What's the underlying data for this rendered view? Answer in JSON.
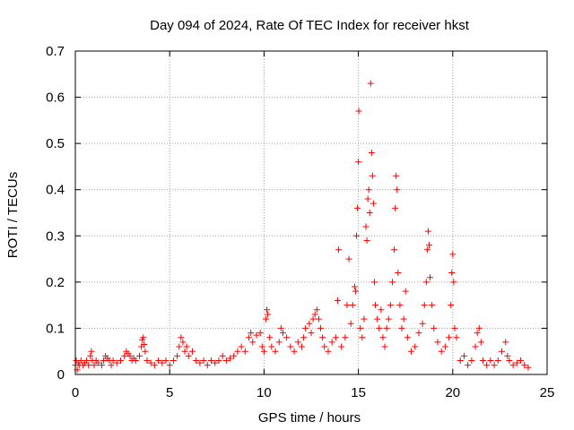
{
  "chart_data": {
    "type": "scatter",
    "title": "Day 094 of 2024, Rate Of TEC Index for receiver hkst",
    "xlabel": "GPS time / hours",
    "ylabel": "ROTI / TECUs",
    "xlim": [
      0,
      25
    ],
    "ylim": [
      0,
      0.7
    ],
    "xticks": [
      "0",
      "5",
      "10",
      "15",
      "20",
      "25"
    ],
    "xtick_values": [
      0,
      5,
      10,
      15,
      20,
      25
    ],
    "yticks": [
      "0",
      "0.1",
      "0.2",
      "0.3",
      "0.4",
      "0.5",
      "0.6",
      "0.7"
    ],
    "ytick_values": [
      0,
      0.1,
      0.2,
      0.3,
      0.4,
      0.5,
      0.6,
      0.7
    ],
    "grid": true,
    "marker": "+",
    "color": "#ff0000",
    "series": [
      {
        "name": "ROTI",
        "points": [
          [
            0.0,
            0.02
          ],
          [
            0.05,
            0.03
          ],
          [
            0.1,
            0.01
          ],
          [
            0.15,
            0.025
          ],
          [
            0.2,
            0.02
          ],
          [
            0.3,
            0.03
          ],
          [
            0.4,
            0.02
          ],
          [
            0.5,
            0.025
          ],
          [
            0.6,
            0.03
          ],
          [
            0.7,
            0.02
          ],
          [
            0.8,
            0.04
          ],
          [
            0.85,
            0.05
          ],
          [
            0.9,
            0.03
          ],
          [
            1.0,
            0.02
          ],
          [
            1.1,
            0.03
          ],
          [
            1.2,
            0.025
          ],
          [
            1.4,
            0.02
          ],
          [
            1.5,
            0.03
          ],
          [
            1.6,
            0.04
          ],
          [
            1.7,
            0.035
          ],
          [
            1.8,
            0.03
          ],
          [
            1.9,
            0.02
          ],
          [
            2.0,
            0.03
          ],
          [
            2.2,
            0.025
          ],
          [
            2.4,
            0.03
          ],
          [
            2.6,
            0.04
          ],
          [
            2.7,
            0.05
          ],
          [
            2.8,
            0.045
          ],
          [
            2.9,
            0.04
          ],
          [
            3.0,
            0.03
          ],
          [
            3.1,
            0.035
          ],
          [
            3.2,
            0.03
          ],
          [
            3.4,
            0.04
          ],
          [
            3.5,
            0.06
          ],
          [
            3.55,
            0.075
          ],
          [
            3.6,
            0.08
          ],
          [
            3.65,
            0.065
          ],
          [
            3.7,
            0.05
          ],
          [
            3.8,
            0.03
          ],
          [
            4.0,
            0.025
          ],
          [
            4.2,
            0.02
          ],
          [
            4.4,
            0.03
          ],
          [
            4.6,
            0.025
          ],
          [
            4.8,
            0.03
          ],
          [
            5.0,
            0.02
          ],
          [
            5.2,
            0.03
          ],
          [
            5.4,
            0.04
          ],
          [
            5.5,
            0.06
          ],
          [
            5.6,
            0.08
          ],
          [
            5.7,
            0.07
          ],
          [
            5.8,
            0.05
          ],
          [
            5.9,
            0.06
          ],
          [
            6.0,
            0.04
          ],
          [
            6.2,
            0.05
          ],
          [
            6.4,
            0.03
          ],
          [
            6.6,
            0.025
          ],
          [
            6.8,
            0.03
          ],
          [
            7.0,
            0.02
          ],
          [
            7.2,
            0.03
          ],
          [
            7.4,
            0.025
          ],
          [
            7.6,
            0.03
          ],
          [
            7.8,
            0.04
          ],
          [
            8.0,
            0.03
          ],
          [
            8.2,
            0.035
          ],
          [
            8.4,
            0.04
          ],
          [
            8.6,
            0.05
          ],
          [
            8.8,
            0.06
          ],
          [
            9.0,
            0.05
          ],
          [
            9.2,
            0.08
          ],
          [
            9.3,
            0.09
          ],
          [
            9.4,
            0.07
          ],
          [
            9.6,
            0.085
          ],
          [
            9.8,
            0.09
          ],
          [
            9.9,
            0.06
          ],
          [
            10.0,
            0.05
          ],
          [
            10.1,
            0.12
          ],
          [
            10.15,
            0.14
          ],
          [
            10.2,
            0.13
          ],
          [
            10.3,
            0.08
          ],
          [
            10.4,
            0.06
          ],
          [
            10.6,
            0.05
          ],
          [
            10.8,
            0.07
          ],
          [
            10.9,
            0.1
          ],
          [
            11.0,
            0.09
          ],
          [
            11.2,
            0.08
          ],
          [
            11.4,
            0.06
          ],
          [
            11.6,
            0.05
          ],
          [
            11.8,
            0.07
          ],
          [
            12.0,
            0.06
          ],
          [
            12.1,
            0.08
          ],
          [
            12.2,
            0.1
          ],
          [
            12.4,
            0.11
          ],
          [
            12.5,
            0.09
          ],
          [
            12.6,
            0.12
          ],
          [
            12.7,
            0.13
          ],
          [
            12.8,
            0.14
          ],
          [
            12.9,
            0.12
          ],
          [
            13.0,
            0.1
          ],
          [
            13.1,
            0.08
          ],
          [
            13.2,
            0.06
          ],
          [
            13.4,
            0.05
          ],
          [
            13.6,
            0.07
          ],
          [
            13.8,
            0.08
          ],
          [
            13.9,
            0.16
          ],
          [
            13.95,
            0.27
          ],
          [
            14.1,
            0.06
          ],
          [
            14.3,
            0.08
          ],
          [
            14.4,
            0.15
          ],
          [
            14.5,
            0.25
          ],
          [
            14.6,
            0.11
          ],
          [
            14.7,
            0.15
          ],
          [
            14.8,
            0.19
          ],
          [
            14.85,
            0.18
          ],
          [
            14.9,
            0.3
          ],
          [
            14.95,
            0.36
          ],
          [
            15.0,
            0.46
          ],
          [
            15.02,
            0.57
          ],
          [
            15.1,
            0.1
          ],
          [
            15.2,
            0.08
          ],
          [
            15.3,
            0.12
          ],
          [
            15.4,
            0.32
          ],
          [
            15.45,
            0.29
          ],
          [
            15.5,
            0.38
          ],
          [
            15.55,
            0.4
          ],
          [
            15.6,
            0.35
          ],
          [
            15.65,
            0.63
          ],
          [
            15.7,
            0.48
          ],
          [
            15.75,
            0.43
          ],
          [
            15.8,
            0.37
          ],
          [
            15.85,
            0.2
          ],
          [
            15.9,
            0.15
          ],
          [
            16.0,
            0.12
          ],
          [
            16.1,
            0.1
          ],
          [
            16.2,
            0.14
          ],
          [
            16.3,
            0.08
          ],
          [
            16.4,
            0.06
          ],
          [
            16.5,
            0.1
          ],
          [
            16.6,
            0.12
          ],
          [
            16.7,
            0.15
          ],
          [
            16.8,
            0.2
          ],
          [
            16.9,
            0.27
          ],
          [
            16.95,
            0.36
          ],
          [
            17.0,
            0.43
          ],
          [
            17.05,
            0.4
          ],
          [
            17.1,
            0.22
          ],
          [
            17.2,
            0.15
          ],
          [
            17.3,
            0.1
          ],
          [
            17.4,
            0.12
          ],
          [
            17.5,
            0.18
          ],
          [
            17.6,
            0.08
          ],
          [
            17.8,
            0.05
          ],
          [
            18.0,
            0.06
          ],
          [
            18.2,
            0.09
          ],
          [
            18.4,
            0.11
          ],
          [
            18.5,
            0.15
          ],
          [
            18.6,
            0.2
          ],
          [
            18.65,
            0.27
          ],
          [
            18.7,
            0.31
          ],
          [
            18.75,
            0.28
          ],
          [
            18.8,
            0.21
          ],
          [
            18.9,
            0.15
          ],
          [
            19.0,
            0.1
          ],
          [
            19.2,
            0.07
          ],
          [
            19.4,
            0.05
          ],
          [
            19.6,
            0.06
          ],
          [
            19.8,
            0.08
          ],
          [
            19.9,
            0.15
          ],
          [
            19.95,
            0.22
          ],
          [
            20.0,
            0.26
          ],
          [
            20.05,
            0.2
          ],
          [
            20.1,
            0.1
          ],
          [
            20.2,
            0.08
          ],
          [
            20.4,
            0.03
          ],
          [
            20.6,
            0.04
          ],
          [
            20.8,
            0.02
          ],
          [
            21.0,
            0.03
          ],
          [
            21.2,
            0.06
          ],
          [
            21.3,
            0.09
          ],
          [
            21.4,
            0.1
          ],
          [
            21.5,
            0.07
          ],
          [
            21.6,
            0.03
          ],
          [
            21.8,
            0.02
          ],
          [
            22.0,
            0.03
          ],
          [
            22.2,
            0.02
          ],
          [
            22.4,
            0.03
          ],
          [
            22.6,
            0.05
          ],
          [
            22.8,
            0.07
          ],
          [
            22.9,
            0.04
          ],
          [
            23.0,
            0.03
          ],
          [
            23.2,
            0.02
          ],
          [
            23.4,
            0.025
          ],
          [
            23.6,
            0.03
          ],
          [
            23.8,
            0.02
          ],
          [
            24.0,
            0.015
          ]
        ]
      }
    ]
  }
}
